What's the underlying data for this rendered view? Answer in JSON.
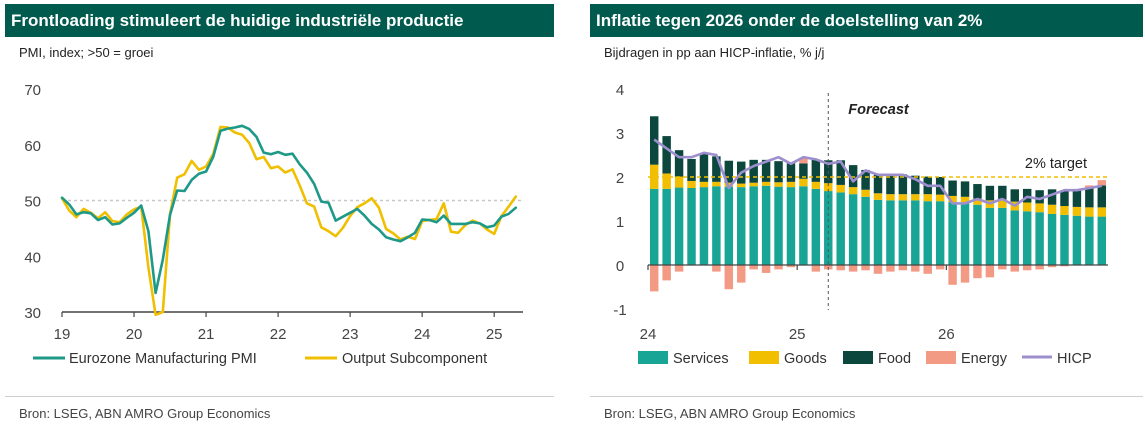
{
  "left_panel": {
    "title": "Frontloading stimuleert de huidige industriële productie",
    "subtitle": "PMI, index; >50 = groei",
    "source": "Bron: LSEG, ABN AMRO Group Economics"
  },
  "right_panel": {
    "title": "Inflatie tegen 2026 onder de doelstelling van 2%",
    "subtitle": "Bijdragen in pp aan HICP-inflatie, % j/j",
    "source": "Bron: LSEG, ABN AMRO Group Economics"
  },
  "chart_data": [
    {
      "type": "line",
      "title": "Frontloading stimuleert de huidige industriële productie",
      "ylabel": "PMI, index; >50 = groei",
      "ylim": [
        30,
        70
      ],
      "yticks": [
        30,
        40,
        50,
        60,
        70
      ],
      "xlim": [
        2019,
        2025.4
      ],
      "xticks": [
        {
          "v": 2019,
          "label": "19"
        },
        {
          "v": 2020,
          "label": "20"
        },
        {
          "v": 2021,
          "label": "21"
        },
        {
          "v": 2022,
          "label": "22"
        },
        {
          "v": 2023,
          "label": "23"
        },
        {
          "v": 2024,
          "label": "24"
        },
        {
          "v": 2025,
          "label": "25"
        }
      ],
      "reference_line": 50,
      "legend_position": "bottom",
      "colors": {
        "pmi": "#1e9988",
        "output": "#f0bf00",
        "reference": "#c8c8c8",
        "axis": "#444444"
      },
      "series": [
        {
          "name": "Eurozone Manufacturing PMI",
          "x": [
            2019.0,
            2019.1,
            2019.2,
            2019.3,
            2019.4,
            2019.5,
            2019.6,
            2019.7,
            2019.8,
            2019.9,
            2020.0,
            2020.1,
            2020.2,
            2020.3,
            2020.4,
            2020.5,
            2020.6,
            2020.7,
            2020.8,
            2020.9,
            2021.0,
            2021.1,
            2021.2,
            2021.3,
            2021.4,
            2021.5,
            2021.6,
            2021.7,
            2021.8,
            2021.9,
            2022.0,
            2022.1,
            2022.2,
            2022.3,
            2022.4,
            2022.5,
            2022.6,
            2022.7,
            2022.8,
            2022.9,
            2023.0,
            2023.1,
            2023.2,
            2023.3,
            2023.4,
            2023.5,
            2023.6,
            2023.7,
            2023.8,
            2023.9,
            2024.0,
            2024.1,
            2024.2,
            2024.3,
            2024.4,
            2024.5,
            2024.6,
            2024.7,
            2024.8,
            2024.9,
            2025.0,
            2025.1,
            2025.2,
            2025.3
          ],
          "values": [
            50.5,
            49.3,
            47.5,
            47.9,
            47.7,
            46.5,
            47.0,
            45.7,
            45.9,
            46.9,
            47.8,
            49.1,
            44.5,
            33.4,
            39.4,
            47.4,
            51.8,
            51.7,
            53.7,
            54.8,
            55.2,
            57.9,
            62.5,
            62.9,
            63.1,
            63.4,
            62.8,
            61.4,
            58.6,
            58.3,
            58.7,
            58.2,
            58.4,
            56.5,
            55.0,
            53.0,
            49.8,
            49.6,
            46.4,
            47.1,
            47.8,
            48.5,
            47.3,
            45.8,
            44.8,
            43.4,
            43.0,
            42.7,
            43.4,
            44.2,
            46.6,
            46.5,
            46.1,
            47.3,
            45.8,
            45.8,
            45.8,
            46.1,
            45.9,
            45.2,
            45.5,
            47.1,
            47.6,
            48.7
          ]
        },
        {
          "name": "Output Subcomponent",
          "x": [
            2019.0,
            2019.1,
            2019.2,
            2019.3,
            2019.4,
            2019.5,
            2019.6,
            2019.7,
            2019.8,
            2019.9,
            2020.0,
            2020.1,
            2020.2,
            2020.3,
            2020.4,
            2020.5,
            2020.6,
            2020.7,
            2020.8,
            2020.9,
            2021.0,
            2021.1,
            2021.2,
            2021.3,
            2021.4,
            2021.5,
            2021.6,
            2021.7,
            2021.8,
            2021.9,
            2022.0,
            2022.1,
            2022.2,
            2022.3,
            2022.4,
            2022.5,
            2022.6,
            2022.7,
            2022.8,
            2022.9,
            2023.0,
            2023.1,
            2023.2,
            2023.3,
            2023.4,
            2023.5,
            2023.6,
            2023.7,
            2023.8,
            2023.9,
            2024.0,
            2024.1,
            2024.2,
            2024.3,
            2024.4,
            2024.5,
            2024.6,
            2024.7,
            2024.8,
            2024.9,
            2025.0,
            2025.1,
            2025.2,
            2025.3
          ],
          "values": [
            50.4,
            48.2,
            47.0,
            48.5,
            47.8,
            46.8,
            47.9,
            46.3,
            46.1,
            47.5,
            48.4,
            48.9,
            38.0,
            29.5,
            30.0,
            47.5,
            54.1,
            54.7,
            57.1,
            55.5,
            56.1,
            58.4,
            63.2,
            63.1,
            62.2,
            61.8,
            60.3,
            57.4,
            57.8,
            55.8,
            56.1,
            55.0,
            55.6,
            52.7,
            49.5,
            48.9,
            45.2,
            44.5,
            43.6,
            45.1,
            47.2,
            48.8,
            49.5,
            50.4,
            48.7,
            44.9,
            44.1,
            43.0,
            43.5,
            43.1,
            46.3,
            46.5,
            46.7,
            49.5,
            44.4,
            44.2,
            45.6,
            46.4,
            45.9,
            44.8,
            44.0,
            47.2,
            48.9,
            50.7
          ]
        }
      ]
    },
    {
      "type": "bar",
      "stacked": true,
      "title": "Inflatie tegen 2026 onder de doelstelling van 2%",
      "ylabel": "Bijdragen in pp aan HICP-inflatie, % j/j",
      "ylim": [
        -1,
        4
      ],
      "yticks": [
        -1,
        0,
        1,
        2,
        3,
        4
      ],
      "xticks": [
        {
          "i": 0,
          "label": "24"
        },
        {
          "i": 12,
          "label": "25"
        },
        {
          "i": 24,
          "label": "26"
        }
      ],
      "annotations": {
        "forecast_label": "Forecast",
        "forecast_index": 14.5,
        "target_label": "2% target",
        "target_value": 2
      },
      "legend_position": "bottom",
      "colors": {
        "services": "#18a596",
        "goods": "#f2be00",
        "food": "#0c473e",
        "energy": "#f39a85",
        "hicp": "#9d8fce",
        "target": "#f2be00",
        "axis": "#444444"
      },
      "services": [
        1.73,
        1.73,
        1.76,
        1.75,
        1.77,
        1.79,
        1.78,
        1.77,
        1.79,
        1.8,
        1.78,
        1.77,
        1.79,
        1.73,
        1.68,
        1.65,
        1.61,
        1.55,
        1.48,
        1.47,
        1.47,
        1.47,
        1.45,
        1.45,
        1.43,
        1.4,
        1.37,
        1.3,
        1.3,
        1.24,
        1.22,
        1.2,
        1.16,
        1.14,
        1.12,
        1.1,
        1.1
      ],
      "goods": [
        0.55,
        0.35,
        0.25,
        0.16,
        0.12,
        0.1,
        0.09,
        0.08,
        0.08,
        0.09,
        0.1,
        0.12,
        0.17,
        0.16,
        0.18,
        0.17,
        0.16,
        0.16,
        0.15,
        0.14,
        0.14,
        0.14,
        0.16,
        0.15,
        0.14,
        0.15,
        0.14,
        0.17,
        0.18,
        0.2,
        0.2,
        0.2,
        0.21,
        0.2,
        0.2,
        0.21,
        0.21
      ],
      "food": [
        1.1,
        0.85,
        0.6,
        0.5,
        0.65,
        0.58,
        0.5,
        0.5,
        0.52,
        0.5,
        0.48,
        0.42,
        0.35,
        0.5,
        0.52,
        0.56,
        0.5,
        0.45,
        0.42,
        0.42,
        0.45,
        0.42,
        0.4,
        0.4,
        0.35,
        0.35,
        0.33,
        0.33,
        0.32,
        0.28,
        0.31,
        0.3,
        0.35,
        0.35,
        0.38,
        0.45,
        0.5
      ],
      "energy": [
        -0.6,
        -0.35,
        -0.15,
        0.0,
        0.0,
        -0.15,
        -0.55,
        -0.4,
        -0.1,
        -0.18,
        -0.1,
        -0.05,
        0.12,
        -0.15,
        -0.1,
        -0.12,
        -0.15,
        -0.12,
        -0.2,
        -0.15,
        -0.12,
        -0.15,
        -0.2,
        -0.1,
        -0.45,
        -0.4,
        -0.3,
        -0.28,
        -0.1,
        -0.15,
        -0.12,
        -0.1,
        -0.05,
        -0.03,
        0.0,
        0.05,
        0.12
      ],
      "hicp": [
        2.85,
        2.65,
        2.45,
        2.45,
        2.55,
        2.5,
        1.75,
        2.1,
        2.25,
        2.35,
        2.45,
        2.3,
        2.45,
        2.4,
        2.3,
        2.35,
        1.9,
        2.15,
        2.05,
        2.05,
        2.05,
        1.95,
        1.8,
        1.8,
        1.4,
        1.4,
        1.5,
        1.4,
        1.5,
        1.35,
        1.55,
        1.5,
        1.6,
        1.7,
        1.7,
        1.75,
        1.8
      ],
      "series_names": [
        "Services",
        "Goods",
        "Food",
        "Energy",
        "HICP"
      ]
    }
  ]
}
